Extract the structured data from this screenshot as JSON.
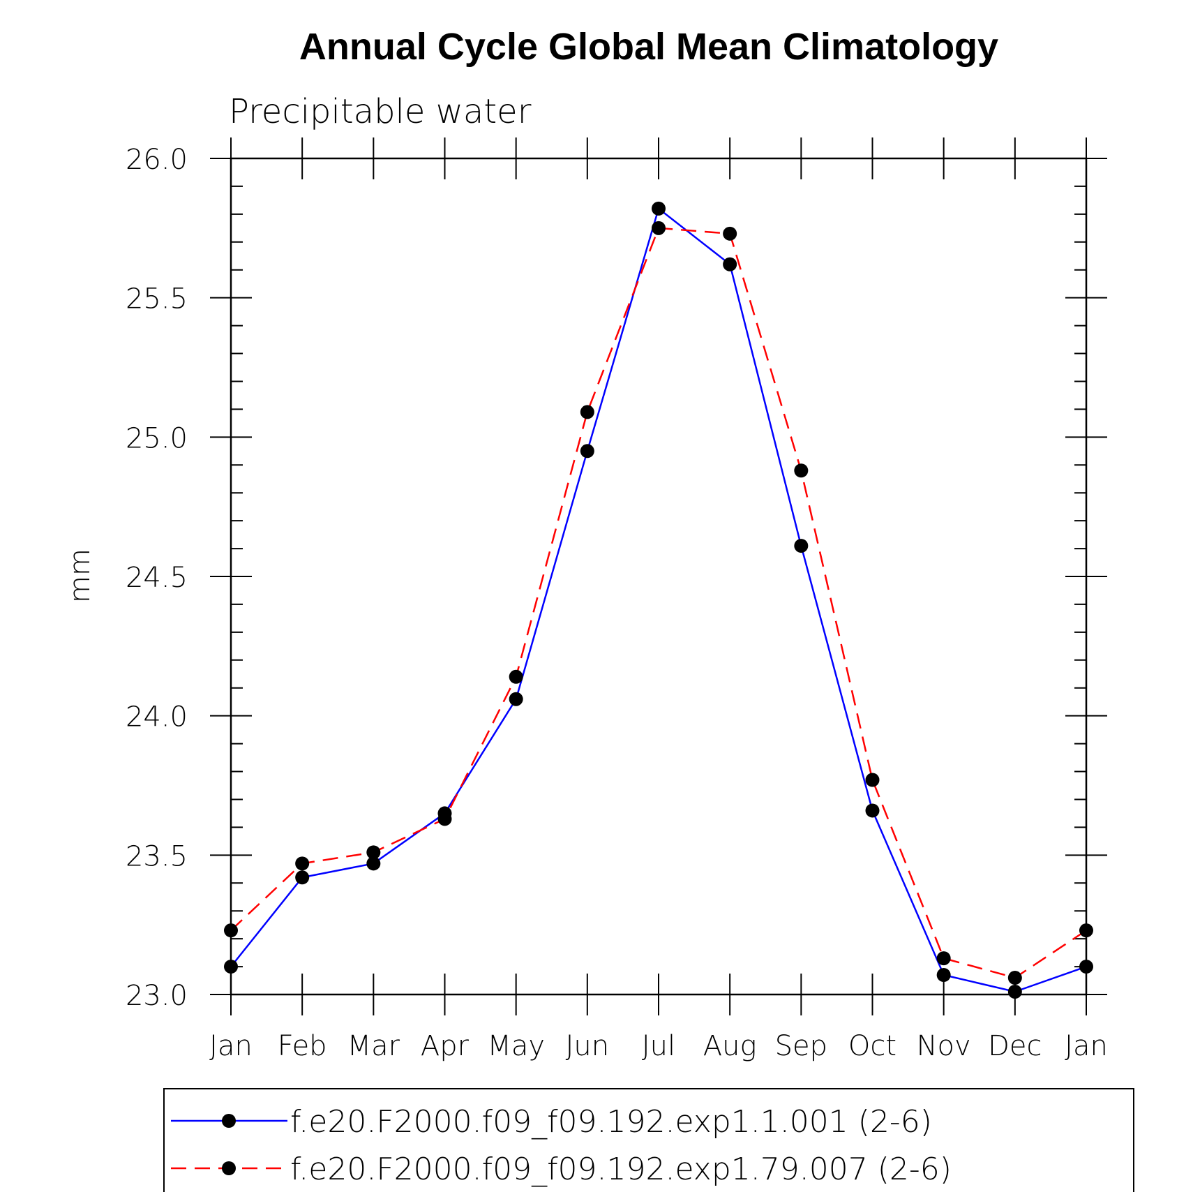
{
  "chart_data": {
    "type": "line",
    "title": "Annual Cycle Global Mean Climatology",
    "subtitle": "Precipitable water",
    "ylabel": "mm",
    "xlabel": "",
    "ylim": [
      23.0,
      26.0
    ],
    "yticks": [
      "23.0",
      "23.5",
      "24.0",
      "24.5",
      "25.0",
      "25.5",
      "26.0"
    ],
    "categories": [
      "Jan",
      "Feb",
      "Mar",
      "Apr",
      "May",
      "Jun",
      "Jul",
      "Aug",
      "Sep",
      "Oct",
      "Nov",
      "Dec",
      "Jan"
    ],
    "series": [
      {
        "name": "f.e20.F2000.f09_f09.192.exp1.1.001 (2-6)",
        "color": "#0000ff",
        "dash": "solid",
        "marker": "filled-circle",
        "values": [
          23.1,
          23.42,
          23.47,
          23.65,
          24.06,
          24.95,
          25.82,
          25.62,
          24.61,
          23.66,
          23.07,
          23.01,
          23.1
        ]
      },
      {
        "name": "f.e20.F2000.f09_f09.192.exp1.79.007 (2-6)",
        "color": "#ff0000",
        "dash": "dashed",
        "marker": "filled-circle",
        "values": [
          23.23,
          23.47,
          23.51,
          23.63,
          24.14,
          25.09,
          25.75,
          25.73,
          24.88,
          23.77,
          23.13,
          23.06,
          23.23
        ]
      }
    ]
  }
}
